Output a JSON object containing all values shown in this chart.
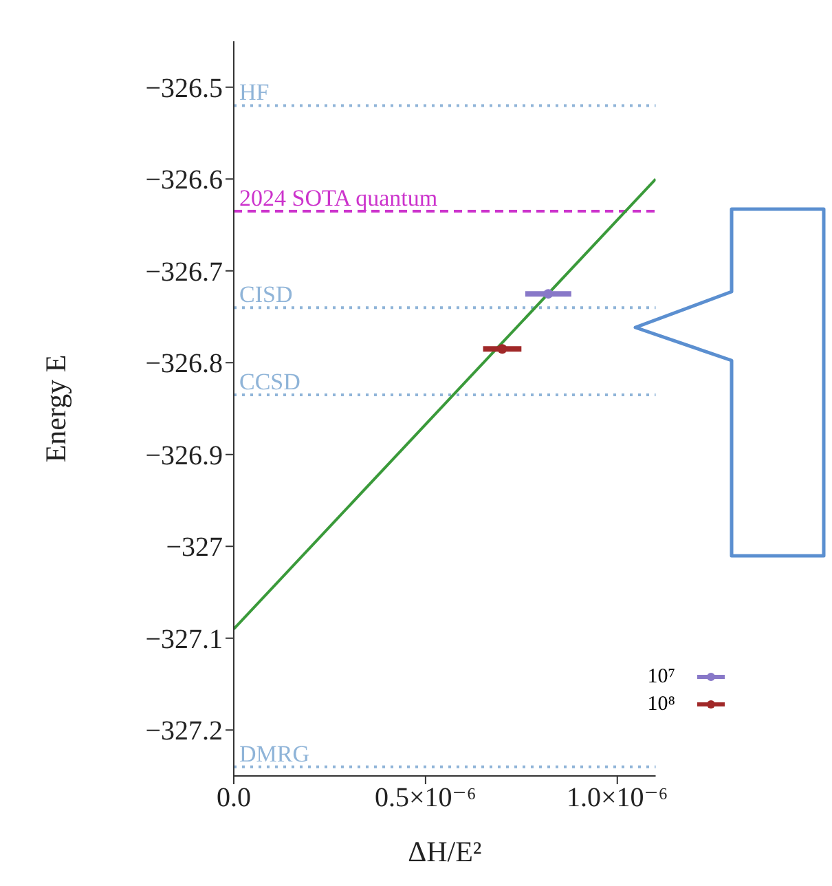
{
  "chart_data": {
    "type": "scatter",
    "xlabel": "ΔH/E²",
    "ylabel": "Energy E",
    "xlim": [
      0,
      1.1e-06
    ],
    "xticks": [
      {
        "value": 0,
        "label": "0.0"
      },
      {
        "value": 5e-07,
        "label": "0.5×10⁻⁶"
      },
      {
        "value": 1e-06,
        "label": "1.0×10⁻⁶"
      }
    ],
    "ylim": [
      -327.25,
      -326.45
    ],
    "yticks": [
      -326.5,
      -326.6,
      -326.7,
      -326.8,
      -326.9,
      -327,
      -327.1,
      -327.2
    ],
    "legend": "bottom right",
    "marker": "circle",
    "series": [
      {
        "type": "line",
        "color": "#3a9a3a",
        "x": [
          0,
          1.1e-06
        ],
        "values": [
          -327.09,
          -326.6
        ],
        "line_style": "solid",
        "marker": "none"
      },
      {
        "name": "10⁷",
        "color": "#8878c8",
        "x": [
          8.2e-07
        ],
        "values": [
          -326.725
        ],
        "xerrors": [
          6e-08
        ]
      },
      {
        "name": "10⁸",
        "color": "#a02828",
        "x": [
          7e-07
        ],
        "values": [
          -326.785
        ],
        "xerrors": [
          5e-08
        ]
      }
    ],
    "ref_lines": [
      {
        "axis": "y",
        "value": -326.52,
        "label": "HF",
        "color": "#8fb4d8",
        "line_style": "dotted"
      },
      {
        "axis": "y",
        "value": -326.635,
        "label": "2024 SOTA quantum",
        "color": "#cc33cc",
        "line_style": "dashed"
      },
      {
        "axis": "y",
        "value": -326.74,
        "label": "CISD",
        "color": "#8fb4d8",
        "line_style": "dotted"
      },
      {
        "axis": "y",
        "value": -326.835,
        "label": "CCSD",
        "color": "#8fb4d8",
        "line_style": "dotted"
      },
      {
        "axis": "y",
        "value": -327.24,
        "label": "DMRG",
        "color": "#8fb4d8",
        "line_style": "dotted"
      }
    ]
  }
}
